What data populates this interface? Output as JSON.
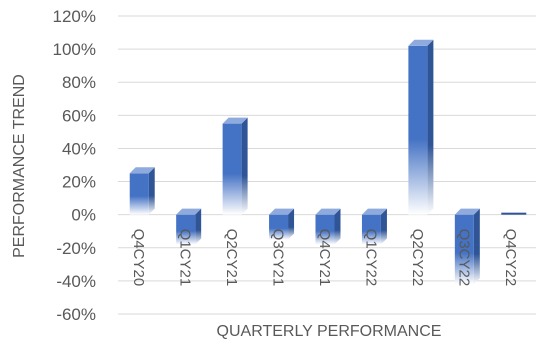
{
  "chart_data": {
    "type": "bar",
    "style": "3d-column-gradient",
    "title": "",
    "xlabel": "QUARTERLY PERFORMANCE",
    "ylabel": "PERFORMANCE TREND",
    "categories": [
      "Q4CY20",
      "Q1CY21",
      "Q2CY21",
      "Q3CY21",
      "Q4CY21",
      "Q1CY22",
      "Q2CY22",
      "Q3CY22",
      "Q4CY22"
    ],
    "series": [
      {
        "values": [
          25,
          -18,
          55,
          -15,
          -18,
          -18,
          102,
          -42,
          0
        ]
      }
    ],
    "ylim": [
      -60,
      120
    ],
    "yticks": [
      -60,
      -40,
      -20,
      0,
      20,
      40,
      60,
      80,
      100,
      120
    ],
    "ytick_suffix": "%",
    "grid": true,
    "legend": "none",
    "colors": {
      "bar": "#4472c4",
      "bar_dark": "#2f5597",
      "bar_light": "#8faadc",
      "grid": "#d9d9d9",
      "text": "#595959"
    }
  }
}
